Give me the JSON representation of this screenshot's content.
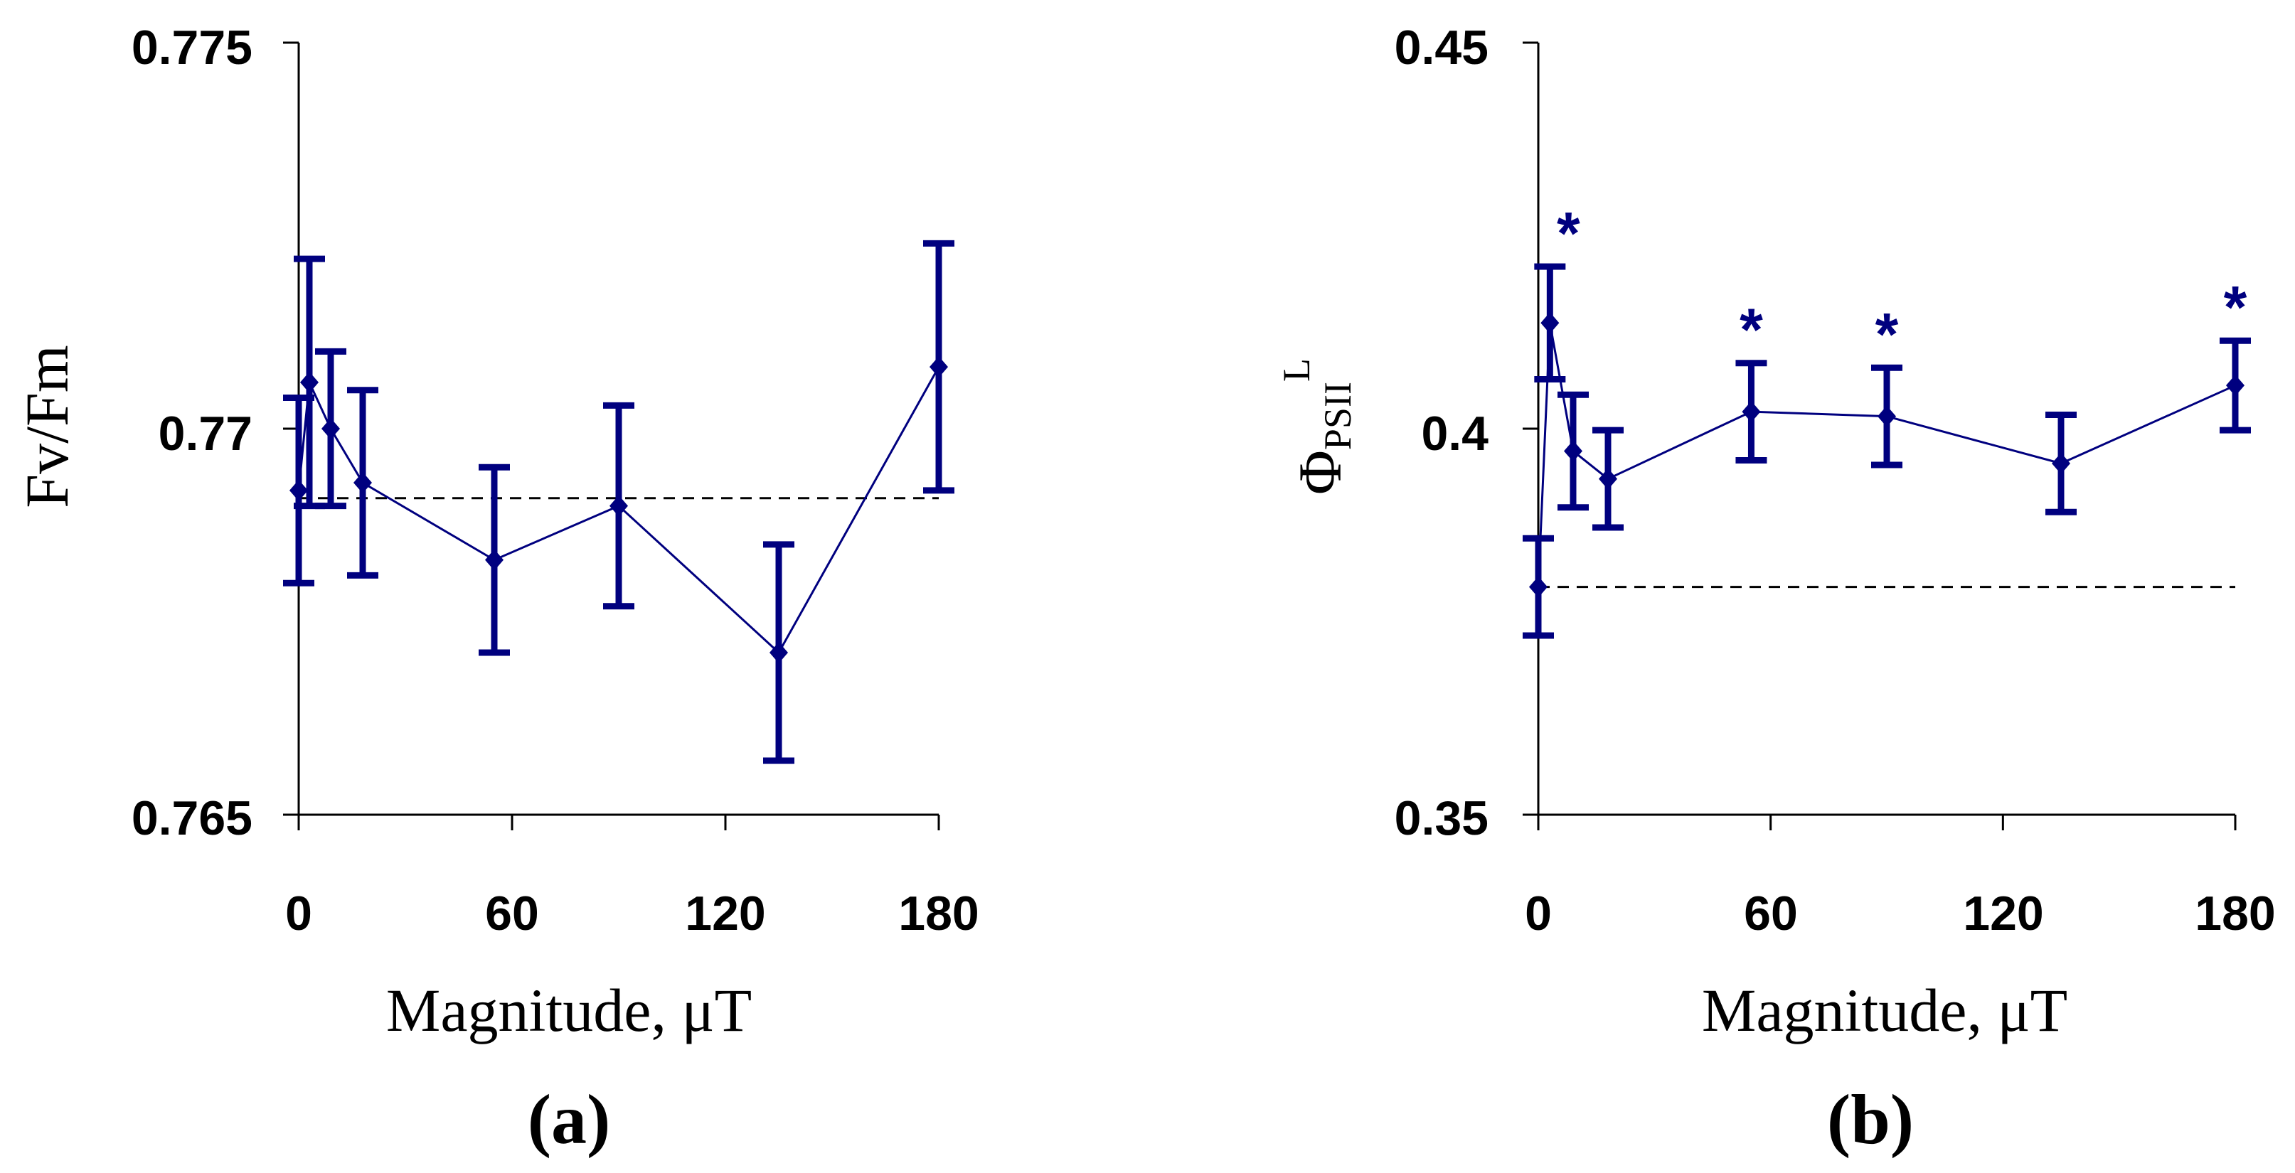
{
  "colors": {
    "series": "#00007f",
    "axis": "#000000",
    "reference": "#000000"
  },
  "chart_data": [
    {
      "type": "line",
      "panel_label": "(a)",
      "xlabel": "Magnitude, μT",
      "ylabel": "Fv/Fm",
      "xlim": [
        0,
        180
      ],
      "ylim": [
        0.765,
        0.775
      ],
      "xticks": [
        0,
        60,
        120,
        180
      ],
      "xtick_labels": [
        "0",
        "60",
        "120",
        "180"
      ],
      "yticks": [
        0.765,
        0.77,
        0.775
      ],
      "ytick_labels": [
        "0.765",
        "0.77",
        "0.775"
      ],
      "reference_line": 0.7691,
      "series": [
        {
          "name": "Fv/Fm",
          "x": [
            0,
            3,
            9,
            18,
            55,
            90,
            135,
            180
          ],
          "y": [
            0.7692,
            0.7706,
            0.77,
            0.7693,
            0.7683,
            0.769,
            0.7671,
            0.7708
          ],
          "err": [
            0.0012,
            0.0016,
            0.001,
            0.0012,
            0.0012,
            0.0013,
            0.0014,
            0.0016
          ],
          "significant": [
            false,
            false,
            false,
            false,
            false,
            false,
            false,
            false
          ]
        }
      ]
    },
    {
      "type": "line",
      "panel_label": "(b)",
      "xlabel": "Magnitude, μT",
      "ylabel_main": "Φ",
      "ylabel_sub": "PSII",
      "ylabel_sup": "L",
      "xlim": [
        0,
        180
      ],
      "ylim": [
        0.35,
        0.45
      ],
      "xticks": [
        0,
        60,
        120,
        180
      ],
      "xtick_labels": [
        "0",
        "60",
        "120",
        "180"
      ],
      "yticks": [
        0.35,
        0.4,
        0.45
      ],
      "ytick_labels": [
        "0.35",
        "0.4",
        "0.45"
      ],
      "reference_line": 0.3795,
      "significance_marker": "*",
      "series": [
        {
          "name": "ΦPSII",
          "x": [
            0,
            3,
            9,
            18,
            55,
            90,
            135,
            180
          ],
          "y": [
            0.3795,
            0.4137,
            0.3971,
            0.3935,
            0.4022,
            0.4016,
            0.3955,
            0.4056
          ],
          "err": [
            0.0063,
            0.0073,
            0.0073,
            0.0063,
            0.0063,
            0.0063,
            0.0063,
            0.0058
          ],
          "significant": [
            false,
            true,
            false,
            false,
            true,
            true,
            false,
            true
          ]
        }
      ]
    }
  ]
}
